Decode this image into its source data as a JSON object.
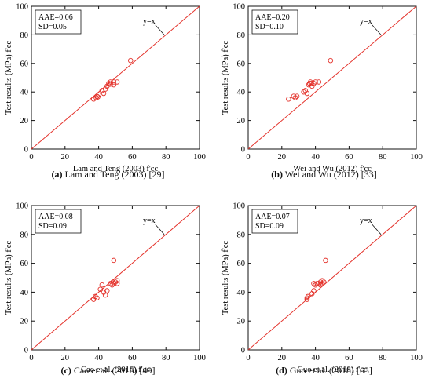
{
  "chart_data": [
    {
      "type": "scatter",
      "panel": "a",
      "caption_letter": "(a)",
      "caption_text": "Lam and Teng (2003) [29]",
      "xlabel": "Lam and Teng (2003) f'cc",
      "ylabel": "Test results (MPa) f'cc",
      "xlim": [
        0,
        100
      ],
      "ylim": [
        0,
        100
      ],
      "xticks": [
        "0",
        "20",
        "40",
        "60",
        "80",
        "100"
      ],
      "yticks": [
        "0",
        "20",
        "40",
        "60",
        "80",
        "100"
      ],
      "legend_lines": [
        "AAE=0.06",
        "SD=0.05"
      ],
      "reference_label": "y=x",
      "grid": false,
      "points": [
        {
          "x": 37,
          "y": 35
        },
        {
          "x": 38.5,
          "y": 36
        },
        {
          "x": 39,
          "y": 37
        },
        {
          "x": 40,
          "y": 38
        },
        {
          "x": 39.5,
          "y": 36.5
        },
        {
          "x": 42,
          "y": 41
        },
        {
          "x": 43,
          "y": 39
        },
        {
          "x": 44,
          "y": 42
        },
        {
          "x": 45,
          "y": 44
        },
        {
          "x": 46,
          "y": 46
        },
        {
          "x": 46.5,
          "y": 45.5
        },
        {
          "x": 47,
          "y": 47
        },
        {
          "x": 47,
          "y": 45.5
        },
        {
          "x": 49,
          "y": 45
        },
        {
          "x": 49,
          "y": 47
        },
        {
          "x": 51,
          "y": 47
        },
        {
          "x": 59,
          "y": 62
        }
      ]
    },
    {
      "type": "scatter",
      "panel": "b",
      "caption_letter": "(b)",
      "caption_text": "Wei and Wu (2012) [33]",
      "xlabel": "Wei and Wu (2012) f'cc",
      "ylabel": "Test results (MPa) f'cc",
      "xlim": [
        0,
        100
      ],
      "ylim": [
        0,
        100
      ],
      "xticks": [
        "0",
        "20",
        "40",
        "60",
        "80",
        "100"
      ],
      "yticks": [
        "0",
        "20",
        "40",
        "60",
        "80",
        "100"
      ],
      "legend_lines": [
        "AAE=0.20",
        "SD=0.10"
      ],
      "reference_label": "y=x",
      "grid": false,
      "points": [
        {
          "x": 24,
          "y": 35
        },
        {
          "x": 27,
          "y": 37
        },
        {
          "x": 28,
          "y": 36
        },
        {
          "x": 29,
          "y": 37
        },
        {
          "x": 33,
          "y": 40
        },
        {
          "x": 34,
          "y": 41
        },
        {
          "x": 35,
          "y": 39
        },
        {
          "x": 36,
          "y": 45
        },
        {
          "x": 36.5,
          "y": 46
        },
        {
          "x": 37,
          "y": 47
        },
        {
          "x": 37.5,
          "y": 46
        },
        {
          "x": 38,
          "y": 44
        },
        {
          "x": 39,
          "y": 46
        },
        {
          "x": 40,
          "y": 47
        },
        {
          "x": 42,
          "y": 47
        },
        {
          "x": 49,
          "y": 62
        }
      ]
    },
    {
      "type": "scatter",
      "panel": "c",
      "caption_letter": "(c)",
      "caption_text": "Cao et al. (2016) [49]",
      "xlabel": "Cao et al. (2016) f'cc",
      "ylabel": "Test results (MPa) f'cc",
      "xlim": [
        0,
        100
      ],
      "ylim": [
        0,
        100
      ],
      "xticks": [
        "0",
        "20",
        "40",
        "60",
        "80",
        "100"
      ],
      "yticks": [
        "0",
        "20",
        "40",
        "60",
        "80",
        "100"
      ],
      "legend_lines": [
        "AAE=0.08",
        "SD=0.09"
      ],
      "reference_label": "y=x",
      "grid": false,
      "points": [
        {
          "x": 37,
          "y": 35
        },
        {
          "x": 38,
          "y": 37
        },
        {
          "x": 39,
          "y": 36
        },
        {
          "x": 41,
          "y": 42
        },
        {
          "x": 42,
          "y": 45
        },
        {
          "x": 43,
          "y": 40
        },
        {
          "x": 44,
          "y": 38
        },
        {
          "x": 45,
          "y": 41
        },
        {
          "x": 47,
          "y": 46
        },
        {
          "x": 48,
          "y": 45
        },
        {
          "x": 48.5,
          "y": 47
        },
        {
          "x": 49,
          "y": 46
        },
        {
          "x": 49,
          "y": 62
        },
        {
          "x": 50,
          "y": 47
        },
        {
          "x": 51,
          "y": 46
        },
        {
          "x": 51,
          "y": 48
        }
      ]
    },
    {
      "type": "scatter",
      "panel": "d",
      "caption_letter": "(d)",
      "caption_text": "Guo et al. (2018) [63]",
      "xlabel": "Guo et al. (2018) f'cc",
      "ylabel": "Test results (MPa) f'cc",
      "xlim": [
        0,
        100
      ],
      "ylim": [
        0,
        100
      ],
      "xticks": [
        "0",
        "20",
        "40",
        "60",
        "80",
        "100"
      ],
      "yticks": [
        "0",
        "20",
        "40",
        "60",
        "80",
        "100"
      ],
      "legend_lines": [
        "AAE=0.07",
        "SD=0.09"
      ],
      "reference_label": "y=x",
      "grid": false,
      "points": [
        {
          "x": 35,
          "y": 35
        },
        {
          "x": 35,
          "y": 36
        },
        {
          "x": 35.5,
          "y": 37
        },
        {
          "x": 38,
          "y": 39
        },
        {
          "x": 39,
          "y": 41
        },
        {
          "x": 39,
          "y": 46
        },
        {
          "x": 40,
          "y": 45
        },
        {
          "x": 41,
          "y": 46
        },
        {
          "x": 42,
          "y": 46
        },
        {
          "x": 43,
          "y": 45
        },
        {
          "x": 43,
          "y": 47
        },
        {
          "x": 44,
          "y": 46
        },
        {
          "x": 44,
          "y": 48
        },
        {
          "x": 45,
          "y": 47
        },
        {
          "x": 46,
          "y": 62
        }
      ]
    }
  ],
  "colors": {
    "marker": "#e4322b",
    "reference_line": "#e4322b",
    "axis": "#111111"
  }
}
